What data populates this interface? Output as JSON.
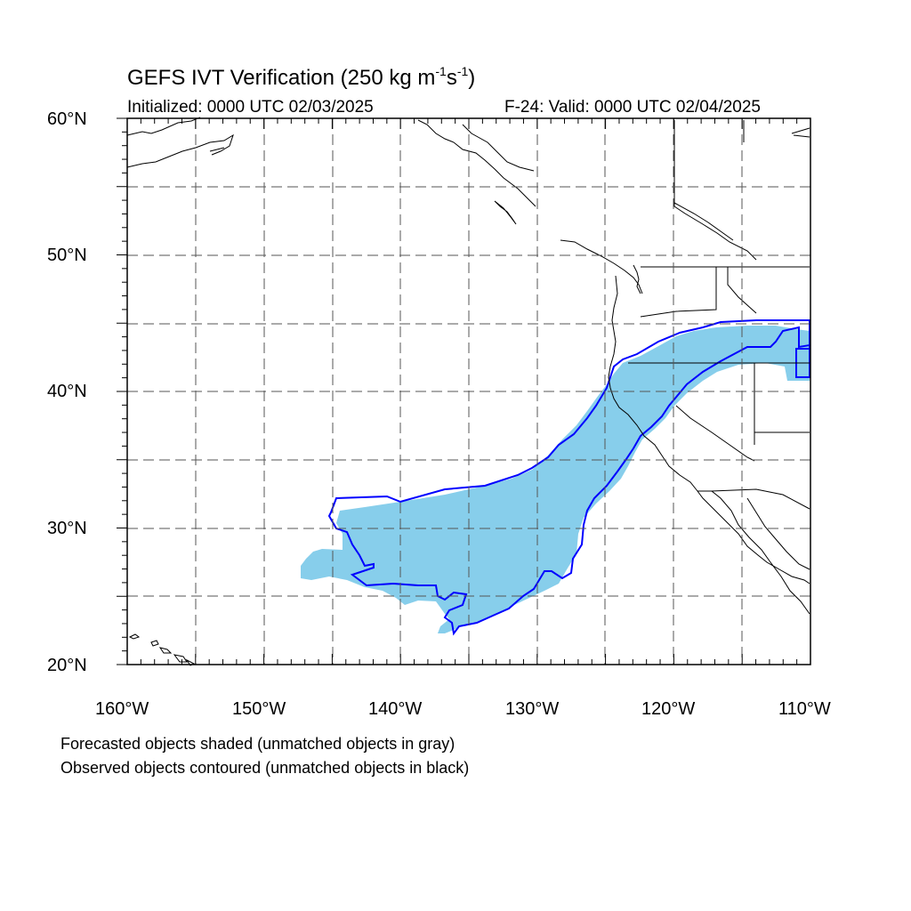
{
  "title": {
    "main": "GEFS IVT Verification (250 kg m",
    "sup1": "-1",
    "mid": "s",
    "sup2": "-1",
    "end": ")"
  },
  "initialized": "Initialized: 0000 UTC 02/03/2025",
  "valid": "F-24: Valid: 0000 UTC 02/04/2025",
  "lat_labels": [
    "60°N",
    "50°N",
    "40°N",
    "30°N",
    "20°N"
  ],
  "lon_labels": [
    "160°W",
    "150°W",
    "140°W",
    "130°W",
    "120°W",
    "110°W"
  ],
  "notes": {
    "forecast": "Forecasted objects shaded (unmatched objects in gray)",
    "observed": "Observed objects contoured (unmatched objects in black)"
  },
  "colors": {
    "forecast_fill": "#87ceeb",
    "observed_contour": "#0000ff",
    "coastline": "#000000",
    "grid": "#555555"
  },
  "map_extent": {
    "lon_min": -160,
    "lon_max": -110,
    "lat_min": 20,
    "lat_max": 60
  }
}
